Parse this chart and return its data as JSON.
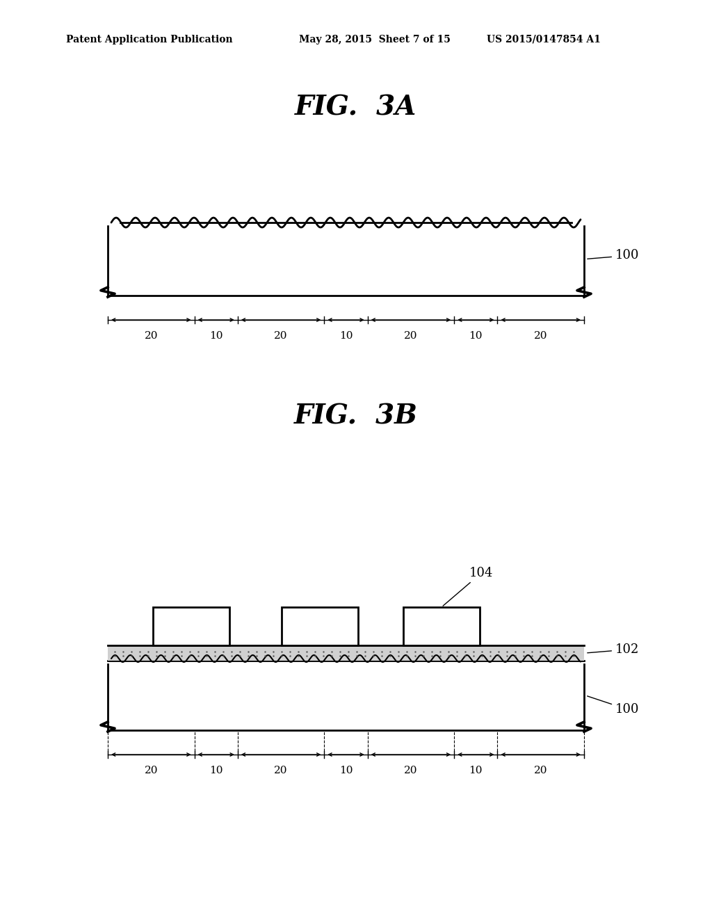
{
  "bg_color": "#ffffff",
  "header_left": "Patent Application Publication",
  "header_mid": "May 28, 2015  Sheet 7 of 15",
  "header_right": "US 2015/0147854 A1",
  "fig3a_title": "FIG.  3A",
  "fig3b_title": "FIG.  3B",
  "label_100": "100",
  "label_102": "102",
  "label_104": "104",
  "dim_labels": [
    "20",
    "10",
    "20",
    "10",
    "20",
    "10",
    "20"
  ],
  "line_color": "#000000",
  "hatch_color": "#aaaaaa"
}
